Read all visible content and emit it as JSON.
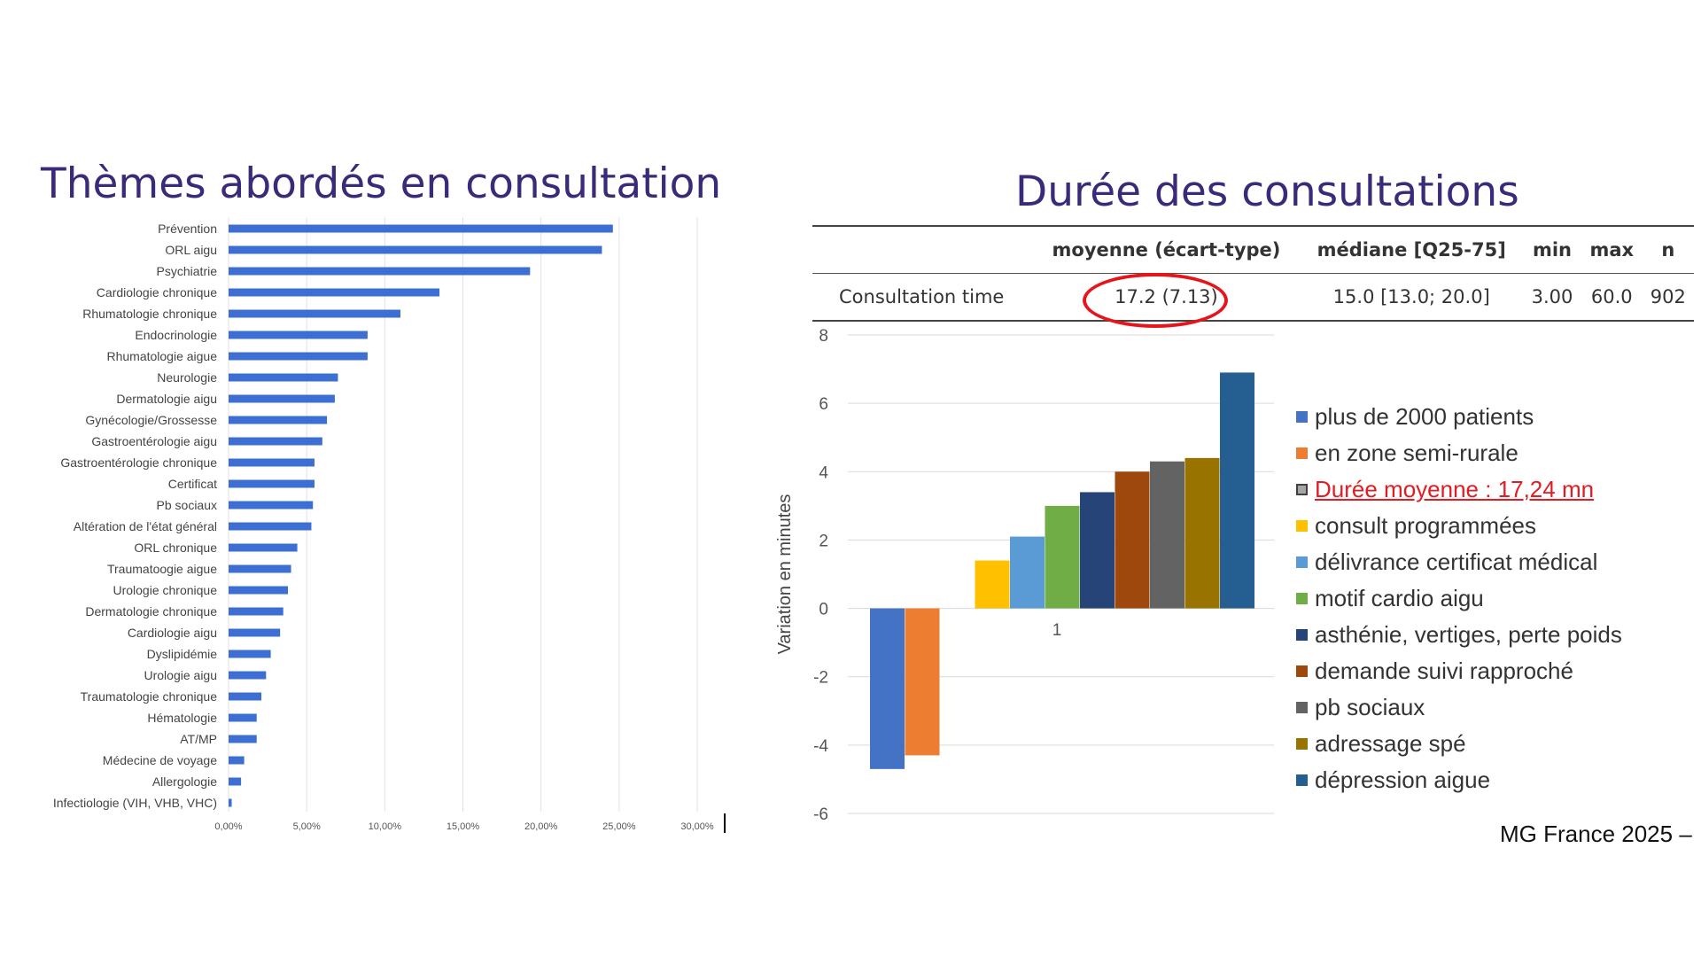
{
  "left": {
    "title": "Thèmes abordés en consultation"
  },
  "right": {
    "title": "Durée des consultations",
    "table": {
      "headers": [
        "",
        "moyenne (écart-type)",
        "médiane [Q25-75]",
        "min",
        "max",
        "n"
      ],
      "row": [
        "Consultation time",
        "17.2 (7.13)",
        "15.0 [13.0; 20.0]",
        "3.00",
        "60.0",
        "902"
      ]
    }
  },
  "footer": "MG France 2025 –",
  "chart_data": [
    {
      "type": "bar",
      "orientation": "horizontal",
      "categories": [
        "Prévention",
        "ORL aigu",
        "Psychiatrie",
        "Cardiologie chronique",
        "Rhumatologie chronique",
        "Endocrinologie",
        "Rhumatologie aigue",
        "Neurologie",
        "Dermatologie aigu",
        "Gynécologie/Grossesse",
        "Gastroentérologie aigu",
        "Gastroentérologie chronique",
        "Certificat",
        "Pb sociaux",
        "Altération de l'état général",
        "ORL chronique",
        "Traumatoogie aigue",
        "Urologie chronique",
        "Dermatologie chronique",
        "Cardiologie aigu",
        "Dyslipidémie",
        "Urologie aigu",
        "Traumatologie chronique",
        "Hématologie",
        "AT/MP",
        "Médecine de voyage",
        "Allergologie",
        "Infectiologie (VIH, VHB, VHC)"
      ],
      "values": [
        24.6,
        23.9,
        19.3,
        13.5,
        11.0,
        8.9,
        8.9,
        7.0,
        6.8,
        6.3,
        6.0,
        5.5,
        5.5,
        5.4,
        5.3,
        4.4,
        4.0,
        3.8,
        3.5,
        3.3,
        2.7,
        2.4,
        2.1,
        1.8,
        1.8,
        1.0,
        0.8,
        0.2
      ],
      "xticks": [
        "0,00%",
        "5,00%",
        "10,00%",
        "15,00%",
        "20,00%",
        "25,00%",
        "30,00%"
      ],
      "xlim": [
        0,
        30
      ],
      "color": "#3c6fd1",
      "grid": true
    },
    {
      "type": "bar",
      "categories": [
        "1"
      ],
      "ylabel": "Variation en minutes",
      "ylim": [
        -6,
        8
      ],
      "yticks": [
        "8",
        "6",
        "4",
        "2",
        "0",
        "-2",
        "-4",
        "-6"
      ],
      "grid": true,
      "legend": "right",
      "series": [
        {
          "name": "plus de 2000 patients",
          "value": -4.7,
          "color": "#4472c4"
        },
        {
          "name": "en zone semi-rurale",
          "value": -4.3,
          "color": "#ed7d31"
        },
        {
          "name": "Durée moyenne : 17,24 mn",
          "value": 0,
          "color": "#a5a5a5"
        },
        {
          "name": "consult programmées",
          "value": 1.4,
          "color": "#ffc000"
        },
        {
          "name": "délivrance certificat médical",
          "value": 2.1,
          "color": "#5b9bd5"
        },
        {
          "name": "motif cardio aigu",
          "value": 3.0,
          "color": "#70ad47"
        },
        {
          "name": "asthénie, vertiges, perte poids",
          "value": 3.4,
          "color": "#264478"
        },
        {
          "name": "demande suivi rapproché",
          "value": 4.0,
          "color": "#9e480e"
        },
        {
          "name": "pb sociaux",
          "value": 4.3,
          "color": "#636363"
        },
        {
          "name": "adressage spé",
          "value": 4.4,
          "color": "#997300"
        },
        {
          "name": "dépression aigue",
          "value": 6.9,
          "color": "#255e91"
        }
      ]
    }
  ]
}
